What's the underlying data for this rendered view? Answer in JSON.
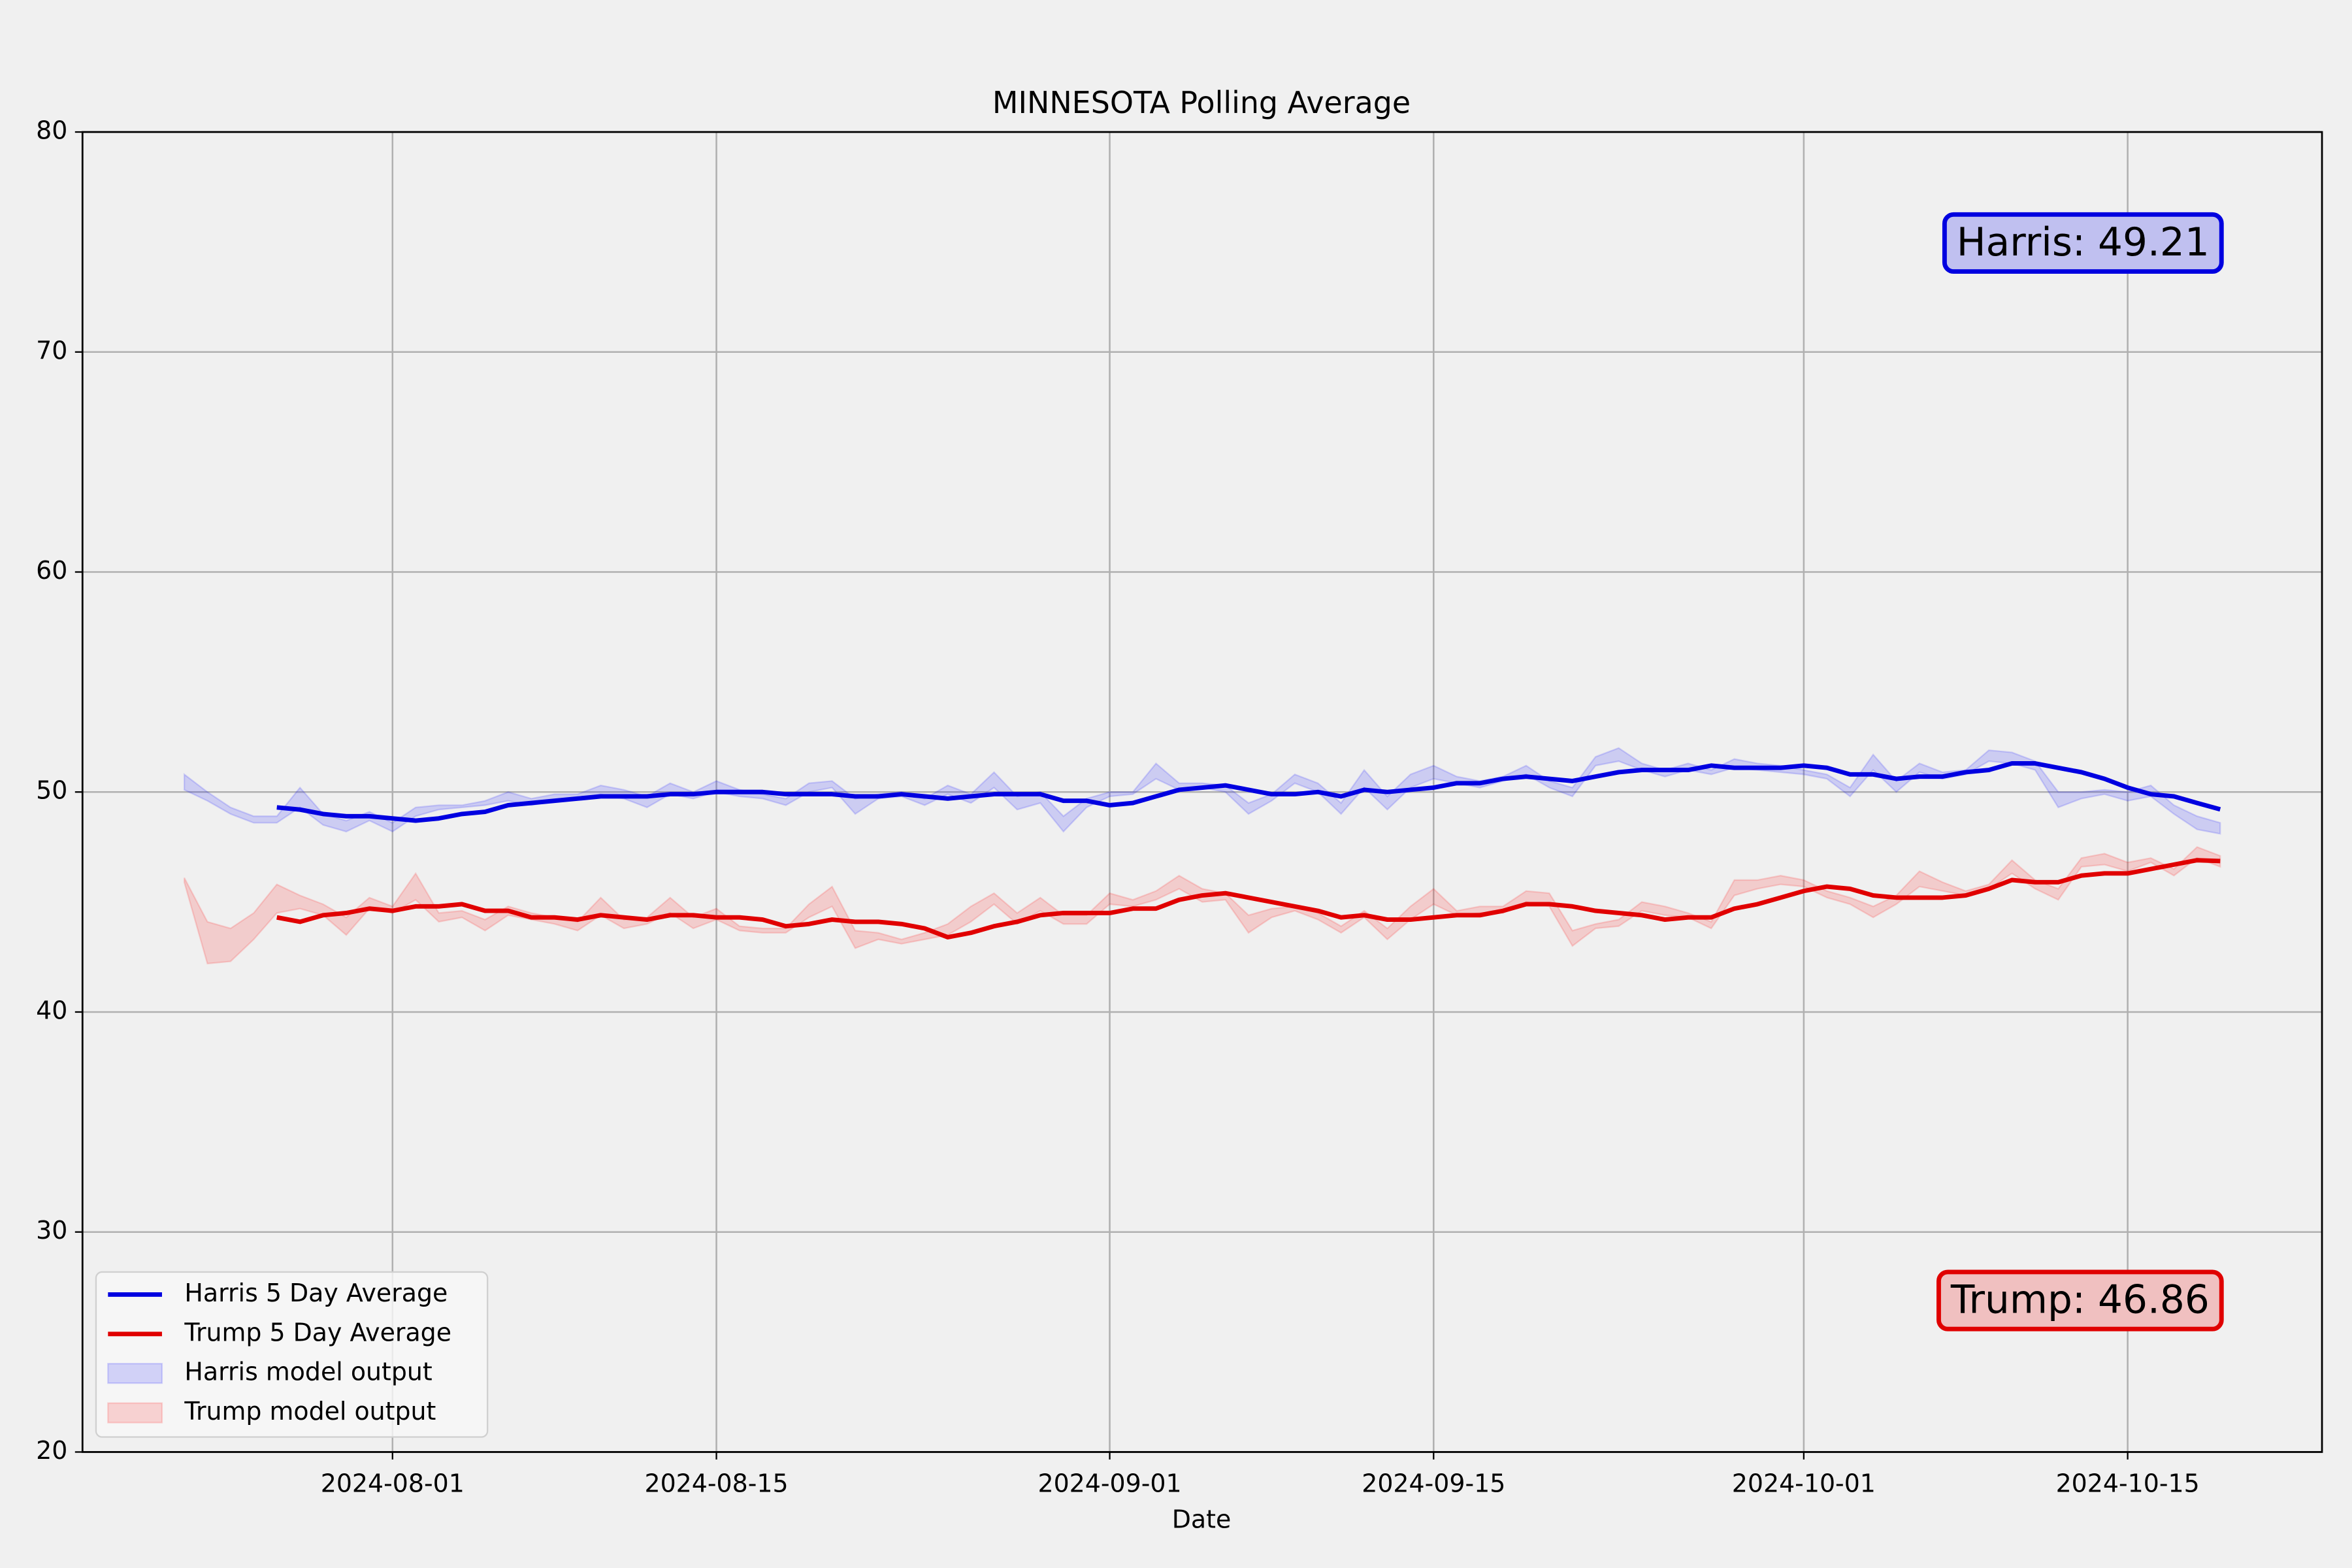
{
  "chart_data": {
    "type": "line",
    "title": "MINNESOTA Polling Average",
    "xlabel": "Date",
    "x": [
      "2024-07-23",
      "2024-07-24",
      "2024-07-25",
      "2024-07-26",
      "2024-07-27",
      "2024-07-28",
      "2024-07-29",
      "2024-07-30",
      "2024-07-31",
      "2024-08-01",
      "2024-08-02",
      "2024-08-03",
      "2024-08-04",
      "2024-08-05",
      "2024-08-06",
      "2024-08-07",
      "2024-08-08",
      "2024-08-09",
      "2024-08-10",
      "2024-08-11",
      "2024-08-12",
      "2024-08-13",
      "2024-08-14",
      "2024-08-15",
      "2024-08-16",
      "2024-08-17",
      "2024-08-18",
      "2024-08-19",
      "2024-08-20",
      "2024-08-21",
      "2024-08-22",
      "2024-08-23",
      "2024-08-24",
      "2024-08-25",
      "2024-08-26",
      "2024-08-27",
      "2024-08-28",
      "2024-08-29",
      "2024-08-30",
      "2024-08-31",
      "2024-09-01",
      "2024-09-02",
      "2024-09-03",
      "2024-09-04",
      "2024-09-05",
      "2024-09-06",
      "2024-09-07",
      "2024-09-08",
      "2024-09-09",
      "2024-09-10",
      "2024-09-11",
      "2024-09-12",
      "2024-09-13",
      "2024-09-14",
      "2024-09-15",
      "2024-09-16",
      "2024-09-17",
      "2024-09-18",
      "2024-09-19",
      "2024-09-20",
      "2024-09-21",
      "2024-09-22",
      "2024-09-23",
      "2024-09-24",
      "2024-09-25",
      "2024-09-26",
      "2024-09-27",
      "2024-09-28",
      "2024-09-29",
      "2024-09-30",
      "2024-10-01",
      "2024-10-02",
      "2024-10-03",
      "2024-10-04",
      "2024-10-05",
      "2024-10-06",
      "2024-10-07",
      "2024-10-08",
      "2024-10-09",
      "2024-10-10",
      "2024-10-11",
      "2024-10-12",
      "2024-10-13",
      "2024-10-14",
      "2024-10-15",
      "2024-10-16",
      "2024-10-17",
      "2024-10-18",
      "2024-10-19"
    ],
    "xlim": [
      "2024-07-18T14:24:00Z",
      "2024-10-23T09:36:00Z"
    ],
    "xticks": [
      "2024-08-01",
      "2024-08-15",
      "2024-09-01",
      "2024-09-15",
      "2024-10-01",
      "2024-10-15"
    ],
    "ylim": [
      20,
      80
    ],
    "yticks": [
      20,
      30,
      40,
      50,
      60,
      70,
      80
    ],
    "grid": true,
    "legend": "lower left",
    "series": [
      {
        "name": "Harris 5 Day Average",
        "color": "#0000e0",
        "values": [
          null,
          null,
          null,
          null,
          49.3,
          49.2,
          49.0,
          48.9,
          48.9,
          48.8,
          48.7,
          48.8,
          49.0,
          49.1,
          49.4,
          49.5,
          49.6,
          49.7,
          49.8,
          49.8,
          49.8,
          49.9,
          49.9,
          50.0,
          50.0,
          50.0,
          49.9,
          49.9,
          49.9,
          49.8,
          49.8,
          49.9,
          49.8,
          49.7,
          49.8,
          49.9,
          49.9,
          49.9,
          49.6,
          49.6,
          49.4,
          49.5,
          49.8,
          50.1,
          50.2,
          50.3,
          50.1,
          49.9,
          49.9,
          50.0,
          49.8,
          50.1,
          50.0,
          50.1,
          50.2,
          50.4,
          50.4,
          50.6,
          50.7,
          50.6,
          50.5,
          50.7,
          50.9,
          51.0,
          51.0,
          51.0,
          51.2,
          51.1,
          51.1,
          51.1,
          51.2,
          51.1,
          50.8,
          50.8,
          50.6,
          50.7,
          50.7,
          50.9,
          51.0,
          51.3,
          51.3,
          51.1,
          50.9,
          50.6,
          50.2,
          49.9,
          49.8,
          49.5,
          49.21
        ]
      },
      {
        "name": "Trump 5 Day Average",
        "color": "#e00000",
        "values": [
          null,
          null,
          null,
          null,
          44.3,
          44.1,
          44.4,
          44.5,
          44.7,
          44.6,
          44.8,
          44.8,
          44.9,
          44.6,
          44.6,
          44.3,
          44.3,
          44.2,
          44.4,
          44.3,
          44.2,
          44.4,
          44.4,
          44.3,
          44.3,
          44.2,
          43.9,
          44.0,
          44.2,
          44.1,
          44.1,
          44.0,
          43.8,
          43.4,
          43.6,
          43.9,
          44.1,
          44.4,
          44.5,
          44.5,
          44.5,
          44.7,
          44.7,
          45.1,
          45.3,
          45.4,
          45.2,
          45.0,
          44.8,
          44.6,
          44.3,
          44.4,
          44.2,
          44.2,
          44.3,
          44.4,
          44.4,
          44.6,
          44.9,
          44.9,
          44.8,
          44.6,
          44.5,
          44.4,
          44.2,
          44.3,
          44.3,
          44.7,
          44.9,
          45.2,
          45.5,
          45.7,
          45.6,
          45.3,
          45.2,
          45.2,
          45.2,
          45.3,
          45.6,
          46.0,
          45.9,
          45.9,
          46.2,
          46.3,
          46.3,
          46.5,
          46.7,
          46.9,
          46.86
        ]
      }
    ],
    "bands": [
      {
        "name": "Harris model output",
        "color": "#0000ff",
        "opacity": 0.15,
        "upper": [
          50.8,
          50.0,
          49.3,
          48.9,
          48.9,
          50.2,
          49.0,
          48.7,
          49.1,
          48.6,
          49.3,
          49.4,
          49.4,
          49.6,
          50.0,
          49.7,
          49.9,
          49.9,
          50.3,
          50.1,
          49.8,
          50.4,
          50.0,
          50.5,
          50.1,
          49.9,
          49.7,
          50.4,
          50.5,
          49.7,
          49.9,
          50.0,
          49.7,
          50.3,
          49.9,
          50.9,
          49.8,
          50.0,
          48.9,
          49.7,
          50.0,
          50.0,
          51.3,
          50.4,
          50.4,
          50.3,
          49.5,
          49.9,
          50.8,
          50.4,
          49.5,
          51.0,
          49.8,
          50.8,
          51.2,
          50.7,
          50.5,
          50.7,
          51.2,
          50.5,
          50.2,
          51.6,
          52.0,
          51.3,
          51.0,
          51.3,
          51.0,
          51.5,
          51.3,
          51.2,
          51.0,
          50.8,
          50.2,
          51.7,
          50.5,
          51.3,
          50.9,
          51.0,
          51.9,
          51.8,
          51.4,
          50.0,
          50.0,
          50.1,
          50.0,
          50.3,
          49.4,
          48.9,
          48.6
        ],
        "lower": [
          50.1,
          49.6,
          49.0,
          48.6,
          48.6,
          49.3,
          48.5,
          48.2,
          48.7,
          48.2,
          48.9,
          49.2,
          49.3,
          49.4,
          49.6,
          49.4,
          49.6,
          49.7,
          49.9,
          49.7,
          49.3,
          49.9,
          49.7,
          50.0,
          49.8,
          49.7,
          49.4,
          50.0,
          50.2,
          49.0,
          49.7,
          49.8,
          49.4,
          49.9,
          49.5,
          50.2,
          49.2,
          49.5,
          48.2,
          49.3,
          49.8,
          49.9,
          50.6,
          50.1,
          50.2,
          50.0,
          49.0,
          49.6,
          50.4,
          50.0,
          49.0,
          50.2,
          49.2,
          50.2,
          50.6,
          50.4,
          50.2,
          50.5,
          50.8,
          50.2,
          49.8,
          51.2,
          51.4,
          51.0,
          50.7,
          51.0,
          50.8,
          51.1,
          51.0,
          50.9,
          50.8,
          50.6,
          49.8,
          51.0,
          50.0,
          50.9,
          50.6,
          50.8,
          51.4,
          51.3,
          51.0,
          49.3,
          49.7,
          49.9,
          49.6,
          49.8,
          49.0,
          48.3,
          48.1
        ]
      },
      {
        "name": "Trump model output",
        "color": "#ff0000",
        "opacity": 0.15,
        "upper": [
          46.1,
          44.1,
          43.8,
          44.5,
          45.8,
          45.3,
          44.9,
          44.3,
          45.2,
          44.8,
          46.3,
          44.5,
          44.6,
          44.2,
          44.8,
          44.5,
          44.3,
          44.1,
          45.2,
          44.2,
          44.3,
          45.2,
          44.3,
          44.7,
          43.9,
          43.8,
          43.8,
          44.9,
          45.7,
          43.7,
          43.6,
          43.3,
          43.6,
          44.0,
          44.8,
          45.4,
          44.5,
          45.2,
          44.4,
          44.4,
          45.4,
          45.1,
          45.5,
          46.2,
          45.6,
          45.4,
          44.4,
          44.7,
          44.8,
          44.5,
          43.9,
          44.6,
          43.8,
          44.8,
          45.6,
          44.6,
          44.8,
          44.8,
          45.5,
          45.4,
          43.7,
          44.0,
          44.2,
          45.0,
          44.8,
          44.5,
          44.1,
          46.0,
          46.0,
          46.2,
          46.0,
          45.5,
          45.2,
          44.8,
          45.3,
          46.4,
          45.9,
          45.5,
          45.8,
          46.9,
          46.0,
          45.6,
          47.0,
          47.2,
          46.8,
          47.0,
          46.5,
          47.5,
          47.1
        ],
        "lower": [
          45.9,
          42.2,
          42.3,
          43.3,
          44.5,
          44.7,
          44.4,
          43.5,
          44.7,
          44.5,
          45.1,
          44.1,
          44.3,
          43.7,
          44.4,
          44.2,
          44.0,
          43.7,
          44.4,
          43.8,
          44.0,
          44.5,
          43.8,
          44.2,
          43.7,
          43.6,
          43.6,
          44.3,
          44.8,
          42.9,
          43.3,
          43.1,
          43.3,
          43.5,
          44.1,
          44.9,
          44.0,
          44.6,
          44.0,
          44.0,
          44.9,
          44.8,
          45.1,
          45.6,
          45.0,
          45.1,
          43.6,
          44.3,
          44.6,
          44.2,
          43.6,
          44.3,
          43.3,
          44.2,
          44.9,
          44.4,
          44.5,
          44.5,
          45.0,
          44.8,
          43.0,
          43.8,
          43.9,
          44.6,
          44.4,
          44.3,
          43.8,
          45.3,
          45.6,
          45.8,
          45.7,
          45.2,
          44.9,
          44.3,
          44.9,
          45.7,
          45.5,
          45.3,
          45.6,
          46.3,
          45.6,
          45.1,
          46.6,
          46.7,
          46.4,
          46.8,
          46.2,
          47.0,
          46.6
        ]
      }
    ],
    "annotations": [
      {
        "text": "Harris: 49.21",
        "color": "#0000e0",
        "facecolor": "#c0c0f0",
        "corner": "upper right"
      },
      {
        "text": "Trump: 46.86",
        "color": "#e00000",
        "facecolor": "#f0c0c0",
        "corner": "lower right"
      }
    ]
  }
}
